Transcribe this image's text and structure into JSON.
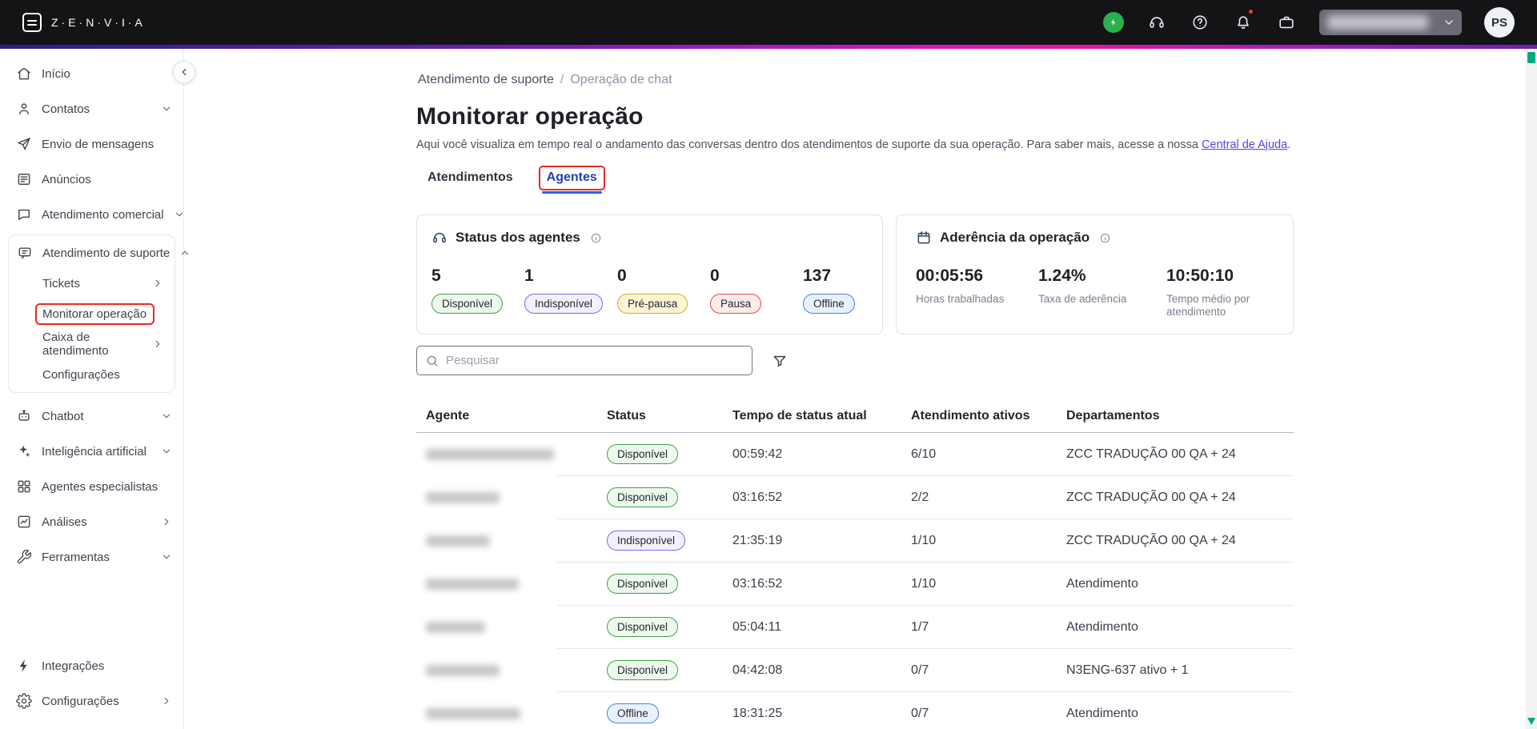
{
  "topbar": {
    "brand": "Z·E·N·V·I·A",
    "avatar_initials": "PS",
    "icons": [
      "credits-icon",
      "support-headset-icon",
      "help-icon",
      "notifications-bell-icon",
      "workspace-briefcase-icon"
    ],
    "account_dropdown": {
      "redacted": true,
      "chevron": "down"
    }
  },
  "sidebar": {
    "items_top": [
      {
        "label": "Início",
        "icon": "home-icon"
      },
      {
        "label": "Contatos",
        "icon": "user-icon",
        "chevron": "down"
      },
      {
        "label": "Envio de mensagens",
        "icon": "send-icon"
      },
      {
        "label": "Anúncios",
        "icon": "news-icon"
      },
      {
        "label": "Atendimento comercial",
        "icon": "chat-icon",
        "chevron": "down"
      }
    ],
    "support_group": {
      "label": "Atendimento de suporte",
      "icon": "support-chat-icon",
      "chevron": "up",
      "children": [
        {
          "label": "Tickets",
          "chevron": "right"
        },
        {
          "label": "Monitorar operação",
          "active": true,
          "annotated": true
        },
        {
          "label": "Caixa de atendimento",
          "chevron": "right"
        },
        {
          "label": "Configurações"
        }
      ]
    },
    "items_mid": [
      {
        "label": "Chatbot",
        "icon": "bot-icon",
        "chevron": "down"
      },
      {
        "label": "Inteligência artificial",
        "icon": "sparkles-icon",
        "chevron": "down"
      },
      {
        "label": "Agentes especialistas",
        "icon": "modules-icon"
      },
      {
        "label": "Análises",
        "icon": "chart-icon",
        "chevron": "right"
      },
      {
        "label": "Ferramentas",
        "icon": "tools-icon",
        "chevron": "down"
      }
    ],
    "items_bottom": [
      {
        "label": "Integrações",
        "icon": "bolt-icon"
      },
      {
        "label": "Configurações",
        "icon": "gear-icon",
        "chevron": "right"
      }
    ]
  },
  "breadcrumb": {
    "items": [
      "Atendimento de suporte",
      "Operação de chat"
    ],
    "separator": "/"
  },
  "page": {
    "title": "Monitorar operação",
    "description": "Aqui você visualiza em tempo real o andamento das conversas dentro dos atendimentos de suporte da sua operação. Para saber mais, acesse a nossa ",
    "description_link": "Central de Ajuda",
    "description_end": "."
  },
  "tabs": [
    {
      "label": "Atendimentos",
      "active": false
    },
    {
      "label": "Agentes",
      "active": true,
      "annotated": true
    }
  ],
  "status_card": {
    "title": "Status dos agentes",
    "stats": [
      {
        "value": "5",
        "label": "Disponível",
        "variant": "green"
      },
      {
        "value": "1",
        "label": "Indisponível",
        "variant": "purple"
      },
      {
        "value": "0",
        "label": "Pré-pausa",
        "variant": "yellow"
      },
      {
        "value": "0",
        "label": "Pausa",
        "variant": "red"
      },
      {
        "value": "137",
        "label": "Offline",
        "variant": "blue"
      }
    ]
  },
  "adherence_card": {
    "title": "Aderência da operação",
    "metrics": [
      {
        "value": "00:05:56",
        "label": "Horas trabalhadas"
      },
      {
        "value": "1.24%",
        "label": "Taxa de aderência"
      },
      {
        "value": "10:50:10",
        "label": "Tempo médio por atendimento"
      }
    ]
  },
  "search": {
    "placeholder": "Pesquisar"
  },
  "table": {
    "columns": [
      "Agente",
      "Status",
      "Tempo de status atual",
      "Atendimento ativos",
      "Departamentos"
    ],
    "rows": [
      {
        "agent_redacted": true,
        "redacted_width": 160,
        "status": "Disponível",
        "variant": "green",
        "time": "00:59:42",
        "actives": "6/10",
        "departments": "ZCC TRADUÇÃO 00 QA + 24"
      },
      {
        "agent_redacted": true,
        "redacted_width": 92,
        "status": "Disponível",
        "variant": "green",
        "time": "03:16:52",
        "actives": "2/2",
        "departments": "ZCC TRADUÇÃO 00 QA + 24"
      },
      {
        "agent_redacted": true,
        "redacted_width": 80,
        "status": "Indisponível",
        "variant": "purple",
        "time": "21:35:19",
        "actives": "1/10",
        "departments": "ZCC TRADUÇÃO 00 QA + 24"
      },
      {
        "agent_redacted": true,
        "redacted_width": 116,
        "status": "Disponível",
        "variant": "green",
        "time": "03:16:52",
        "actives": "1/10",
        "departments": "Atendimento"
      },
      {
        "agent_redacted": true,
        "redacted_width": 74,
        "status": "Disponível",
        "variant": "green",
        "time": "05:04:11",
        "actives": "1/7",
        "departments": "Atendimento"
      },
      {
        "agent_redacted": true,
        "redacted_width": 92,
        "status": "Disponível",
        "variant": "green",
        "time": "04:42:08",
        "actives": "0/7",
        "departments": "N3ENG-637 ativo + 1"
      },
      {
        "agent_redacted": true,
        "redacted_width": 118,
        "status": "Offline",
        "variant": "blue",
        "time": "18:31:25",
        "actives": "0/7",
        "departments": "Atendimento"
      }
    ]
  },
  "colors": {
    "annotation_red": "#ea2a1f",
    "active_tab_underline": "#2563eb",
    "link": "#4f46e5",
    "status_green": "#43a047",
    "status_purple": "#8b5cf6",
    "status_yellow": "#d4ab2c",
    "status_red": "#e5484d",
    "status_blue": "#4a7df0",
    "integrations_bolt": "#f6a91e",
    "ai_sparkles": "#c935cf",
    "scrollbar_teal": "#00a884"
  }
}
